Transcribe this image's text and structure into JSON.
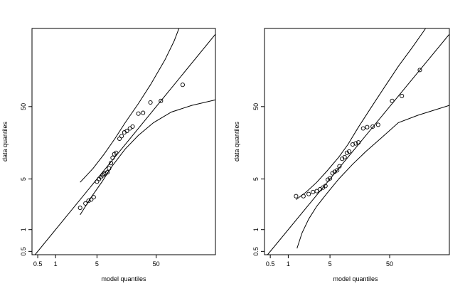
{
  "chart_data": [
    {
      "type": "scatter",
      "title": "",
      "xlabel": "model quantiles",
      "ylabel": "data quantiles",
      "scale": "log",
      "xlim": [
        0.4,
        500
      ],
      "ylim": [
        0.45,
        600
      ],
      "x_ticks": [
        "0.5",
        "1",
        "5",
        "50"
      ],
      "y_ticks": [
        "0.5",
        "1",
        "5",
        "50"
      ],
      "grid": false,
      "points": [
        {
          "x": 2.6,
          "y": 2.0
        },
        {
          "x": 3.2,
          "y": 2.3
        },
        {
          "x": 3.6,
          "y": 2.5
        },
        {
          "x": 4.0,
          "y": 2.6
        },
        {
          "x": 4.4,
          "y": 2.8
        },
        {
          "x": 5.0,
          "y": 4.6
        },
        {
          "x": 5.4,
          "y": 5.0
        },
        {
          "x": 5.8,
          "y": 5.3
        },
        {
          "x": 6.2,
          "y": 5.6
        },
        {
          "x": 6.6,
          "y": 5.9
        },
        {
          "x": 7.0,
          "y": 6.0
        },
        {
          "x": 7.5,
          "y": 6.2
        },
        {
          "x": 8.0,
          "y": 7.0
        },
        {
          "x": 8.6,
          "y": 8.3
        },
        {
          "x": 9.2,
          "y": 9.8
        },
        {
          "x": 9.8,
          "y": 11.0
        },
        {
          "x": 10.5,
          "y": 11.5
        },
        {
          "x": 12.0,
          "y": 18.0
        },
        {
          "x": 13.0,
          "y": 19.5
        },
        {
          "x": 14.5,
          "y": 22.0
        },
        {
          "x": 16.0,
          "y": 23.0
        },
        {
          "x": 18.0,
          "y": 25.0
        },
        {
          "x": 20.0,
          "y": 26.5
        },
        {
          "x": 25.0,
          "y": 40.0
        },
        {
          "x": 30.0,
          "y": 41.0
        },
        {
          "x": 40.0,
          "y": 57.0
        },
        {
          "x": 60.0,
          "y": 60.0
        },
        {
          "x": 140.0,
          "y": 100.0
        }
      ],
      "lines": [
        {
          "role": "reference",
          "points": [
            [
              0.45,
              0.45
            ],
            [
              500,
              500
            ]
          ]
        },
        {
          "role": "upper-envelope",
          "points": [
            [
              2.6,
              4.5
            ],
            [
              4.3,
              7.0
            ],
            [
              6.6,
              11.0
            ],
            [
              10.0,
              18.0
            ],
            [
              15.0,
              30.0
            ],
            [
              25.0,
              55.0
            ],
            [
              40.0,
              100.0
            ],
            [
              70.0,
              220.0
            ],
            [
              100.0,
              400.0
            ],
            [
              130.0,
              700.0
            ]
          ]
        },
        {
          "role": "lower-envelope",
          "points": [
            [
              2.6,
              1.6
            ],
            [
              4.0,
              2.8
            ],
            [
              6.0,
              4.5
            ],
            [
              9.0,
              7.5
            ],
            [
              15.0,
              13.0
            ],
            [
              25.0,
              20.0
            ],
            [
              45.0,
              30.0
            ],
            [
              90.0,
              42.0
            ],
            [
              200.0,
              52.0
            ],
            [
              500.0,
              62.0
            ]
          ]
        }
      ]
    },
    {
      "type": "scatter",
      "title": "",
      "xlabel": "model quantiles",
      "ylabel": "data quantiles",
      "scale": "log",
      "xlim": [
        0.4,
        500
      ],
      "ylim": [
        0.45,
        600
      ],
      "x_ticks": [
        "0.5",
        "1",
        "5",
        "50"
      ],
      "y_ticks": [
        "0.5",
        "1",
        "5",
        "50"
      ],
      "grid": false,
      "points": [
        {
          "x": 1.35,
          "y": 2.9
        },
        {
          "x": 1.8,
          "y": 2.9
        },
        {
          "x": 2.2,
          "y": 3.1
        },
        {
          "x": 2.6,
          "y": 3.3
        },
        {
          "x": 3.0,
          "y": 3.4
        },
        {
          "x": 3.4,
          "y": 3.6
        },
        {
          "x": 3.8,
          "y": 3.8
        },
        {
          "x": 4.2,
          "y": 4.0
        },
        {
          "x": 4.6,
          "y": 4.9
        },
        {
          "x": 5.0,
          "y": 5.1
        },
        {
          "x": 5.5,
          "y": 6.0
        },
        {
          "x": 6.0,
          "y": 6.3
        },
        {
          "x": 6.6,
          "y": 6.6
        },
        {
          "x": 7.2,
          "y": 7.5
        },
        {
          "x": 8.0,
          "y": 9.5
        },
        {
          "x": 8.8,
          "y": 10.0
        },
        {
          "x": 9.6,
          "y": 11.5
        },
        {
          "x": 10.5,
          "y": 12.0
        },
        {
          "x": 12.0,
          "y": 15.0
        },
        {
          "x": 13.5,
          "y": 15.5
        },
        {
          "x": 15.0,
          "y": 16.0
        },
        {
          "x": 18.0,
          "y": 25.0
        },
        {
          "x": 21.0,
          "y": 26.0
        },
        {
          "x": 26.0,
          "y": 26.5
        },
        {
          "x": 32.0,
          "y": 28.0
        },
        {
          "x": 55.0,
          "y": 60.0
        },
        {
          "x": 80.0,
          "y": 70.0
        },
        {
          "x": 160.0,
          "y": 160.0
        }
      ],
      "lines": [
        {
          "role": "reference",
          "points": [
            [
              0.45,
              0.45
            ],
            [
              500,
              500
            ]
          ]
        },
        {
          "role": "upper-envelope",
          "points": [
            [
              1.35,
              2.6
            ],
            [
              2.0,
              3.3
            ],
            [
              3.0,
              4.5
            ],
            [
              4.5,
              6.5
            ],
            [
              7.0,
              10.0
            ],
            [
              10.0,
              15.0
            ],
            [
              15.0,
              26.0
            ],
            [
              25.0,
              50.0
            ],
            [
              40.0,
              90.0
            ],
            [
              70.0,
              180.0
            ],
            [
              120.0,
              330.0
            ],
            [
              200.0,
              600.0
            ]
          ]
        },
        {
          "role": "lower-envelope",
          "points": [
            [
              1.4,
              0.55
            ],
            [
              1.7,
              0.9
            ],
            [
              2.2,
              1.4
            ],
            [
              3.0,
              2.1
            ],
            [
              4.5,
              3.2
            ],
            [
              7.0,
              5.0
            ],
            [
              12.0,
              8.0
            ],
            [
              20.0,
              12.0
            ],
            [
              35.0,
              18.0
            ],
            [
              70.0,
              30.0
            ],
            [
              150.0,
              38.0
            ],
            [
              500.0,
              52.0
            ]
          ]
        }
      ]
    }
  ]
}
